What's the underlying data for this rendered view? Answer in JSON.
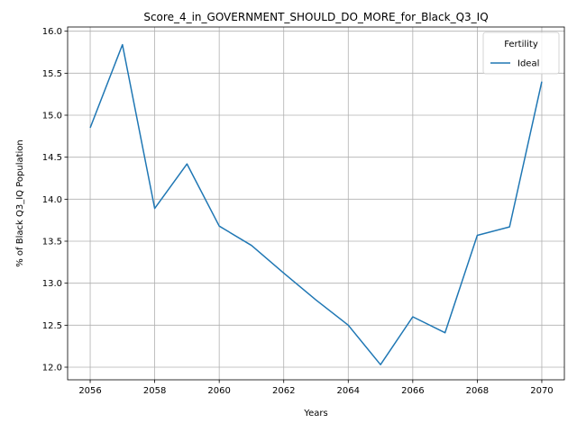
{
  "chart_data": {
    "type": "line",
    "title": "Score_4_in_GOVERNMENT_SHOULD_DO_MORE_for_Black_Q3_IQ",
    "xlabel": "Years",
    "ylabel": "% of Black Q3_IQ Population",
    "xlim": [
      2055.3,
      2070.7
    ],
    "ylim": [
      11.85,
      16.05
    ],
    "xticks": [
      2056,
      2058,
      2060,
      2062,
      2064,
      2066,
      2068,
      2070
    ],
    "yticks": [
      12.0,
      12.5,
      13.0,
      13.5,
      14.0,
      14.5,
      15.0,
      15.5,
      16.0
    ],
    "grid": true,
    "legend": {
      "title": "Fertility",
      "placement": "top-right"
    },
    "series": [
      {
        "name": "Ideal",
        "color": "#1f77b4",
        "x": [
          2056,
          2057,
          2058,
          2059,
          2060,
          2061,
          2062,
          2063,
          2064,
          2065,
          2066,
          2067,
          2068,
          2069,
          2070
        ],
        "y": [
          14.85,
          15.84,
          13.89,
          14.42,
          13.68,
          13.45,
          13.12,
          12.8,
          12.5,
          12.03,
          12.6,
          12.41,
          13.57,
          13.67,
          15.4
        ]
      }
    ]
  }
}
